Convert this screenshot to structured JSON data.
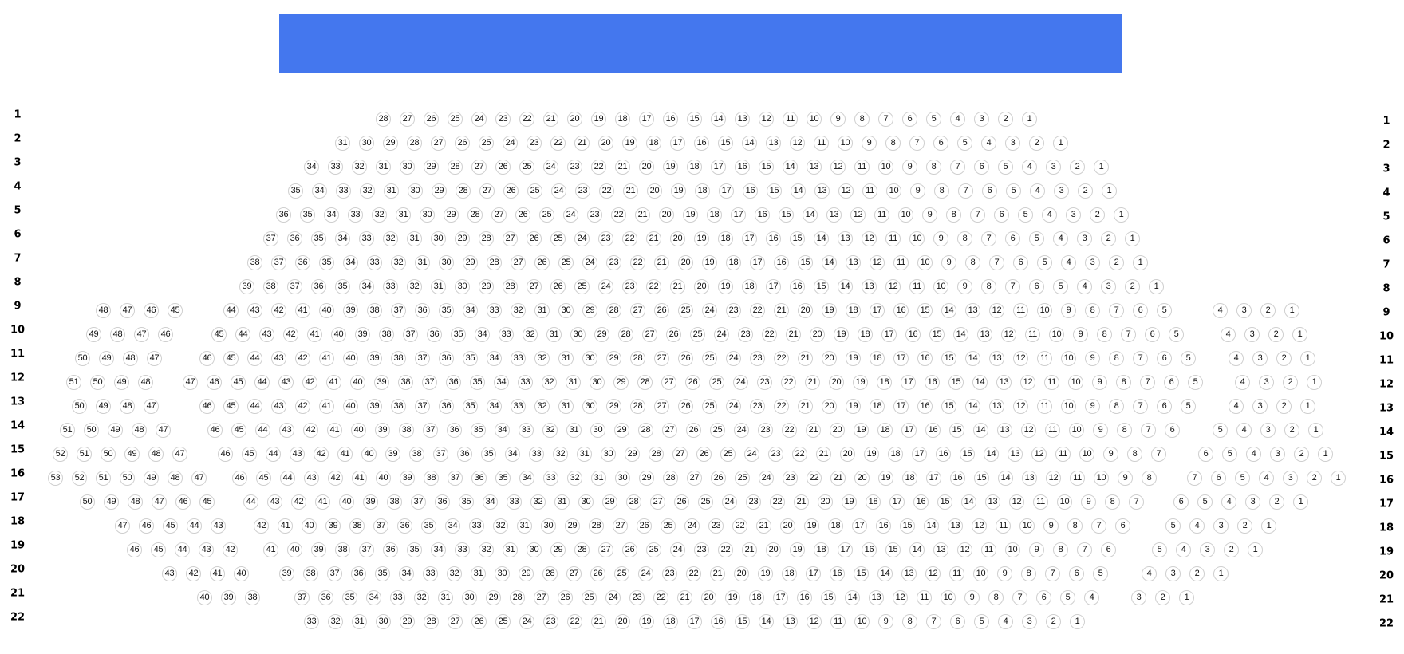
{
  "stage": {
    "color": "#4477ee"
  },
  "seat_style": {
    "border": "#cfcfcf",
    "text": "#111111"
  },
  "rows": [
    {
      "label": "1",
      "blocks": [
        [
          28,
          1
        ]
      ]
    },
    {
      "label": "2",
      "blocks": [
        [
          31,
          1
        ]
      ]
    },
    {
      "label": "3",
      "blocks": [
        [
          34,
          1
        ]
      ]
    },
    {
      "label": "4",
      "blocks": [
        [
          35,
          1
        ]
      ]
    },
    {
      "label": "5",
      "blocks": [
        [
          36,
          1
        ]
      ]
    },
    {
      "label": "6",
      "blocks": [
        [
          37,
          1
        ]
      ]
    },
    {
      "label": "7",
      "blocks": [
        [
          38,
          1
        ]
      ]
    },
    {
      "label": "8",
      "blocks": [
        [
          39,
          1
        ]
      ]
    },
    {
      "label": "9",
      "blocks": [
        [
          48,
          45
        ],
        [
          44,
          5
        ],
        [
          4,
          1
        ]
      ]
    },
    {
      "label": "10",
      "blocks": [
        [
          49,
          46
        ],
        [
          45,
          5
        ],
        [
          4,
          1
        ]
      ]
    },
    {
      "label": "11",
      "blocks": [
        [
          50,
          47
        ],
        [
          46,
          5
        ],
        [
          4,
          1
        ]
      ]
    },
    {
      "label": "12",
      "blocks": [
        [
          51,
          48
        ],
        [
          47,
          5
        ],
        [
          4,
          1
        ]
      ]
    },
    {
      "label": "13",
      "blocks": [
        [
          50,
          47
        ],
        [
          46,
          5
        ],
        [
          4,
          1
        ]
      ]
    },
    {
      "label": "14",
      "blocks": [
        [
          51,
          47
        ],
        [
          46,
          6
        ],
        [
          5,
          1
        ]
      ]
    },
    {
      "label": "15",
      "blocks": [
        [
          52,
          47
        ],
        [
          46,
          7
        ],
        [
          6,
          1
        ]
      ]
    },
    {
      "label": "16",
      "blocks": [
        [
          53,
          47
        ],
        [
          46,
          8
        ],
        [
          7,
          1
        ]
      ]
    },
    {
      "label": "17",
      "blocks": [
        [
          50,
          45
        ],
        [
          44,
          7
        ],
        [
          6,
          1
        ]
      ]
    },
    {
      "label": "18",
      "blocks": [
        [
          47,
          43
        ],
        [
          42,
          6
        ],
        [
          5,
          1
        ]
      ]
    },
    {
      "label": "19",
      "blocks": [
        [
          46,
          42
        ],
        [
          41,
          6
        ],
        [
          5,
          1
        ]
      ]
    },
    {
      "label": "20",
      "blocks": [
        [
          43,
          40
        ],
        [
          39,
          5
        ],
        [
          4,
          1
        ]
      ]
    },
    {
      "label": "21",
      "blocks": [
        [
          40,
          38
        ],
        [
          37,
          4
        ],
        [
          3,
          1
        ]
      ]
    },
    {
      "label": "22",
      "blocks": [
        [
          33,
          1
        ]
      ]
    }
  ]
}
